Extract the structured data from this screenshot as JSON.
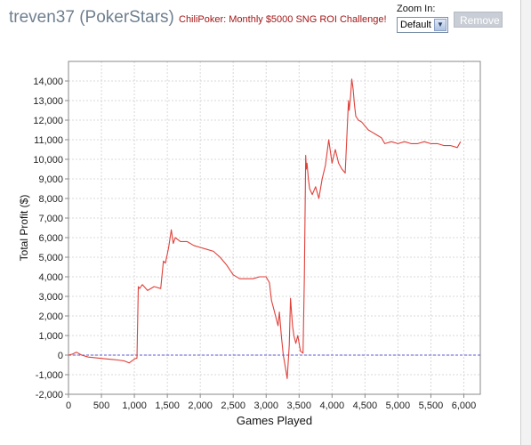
{
  "header": {
    "player_name": "treven37 (PokerStars)",
    "challenge_link": "ChiliPoker: Monthly $5000 SNG ROI Challenge!",
    "zoom_label": "Zoom In:",
    "zoom_value": "Default",
    "remove_label": "Remove"
  },
  "colors": {
    "line": "#e0403a",
    "zero_line": "#5a5ad8",
    "grid": "#d8d8d8",
    "axis": "#888888"
  },
  "icons": {
    "zoom_dropdown": "chevron-down-icon"
  },
  "chart_data": {
    "type": "line",
    "title": "",
    "xlabel": "Games Played",
    "ylabel": "Total Profit ($)",
    "xlim": [
      0,
      6250
    ],
    "ylim": [
      -2000,
      15000
    ],
    "grid": true,
    "legend": "none",
    "x_ticks": [
      0,
      500,
      1000,
      1500,
      2000,
      2500,
      3000,
      3500,
      4000,
      4500,
      5000,
      5500,
      6000
    ],
    "x_tick_labels": [
      "0",
      "500",
      "1,000",
      "1,500",
      "2,000",
      "2,500",
      "3,000",
      "3,500",
      "4,000",
      "4,500",
      "5,000",
      "5,500",
      "6,000"
    ],
    "y_ticks": [
      -2000,
      -1000,
      0,
      1000,
      2000,
      3000,
      4000,
      5000,
      6000,
      7000,
      8000,
      9000,
      10000,
      11000,
      12000,
      13000,
      14000
    ],
    "y_tick_labels": [
      "-2,000",
      "-1,000",
      "0",
      "1,000",
      "2,000",
      "3,000",
      "4,000",
      "5,000",
      "6,000",
      "7,000",
      "8,000",
      "9,000",
      "10,000",
      "11,000",
      "12,000",
      "13,000",
      "14,000"
    ],
    "reference_line": {
      "y": 0,
      "style": "dashed"
    },
    "series": [
      {
        "x": [
          0,
          60,
          120,
          200,
          300,
          450,
          600,
          750,
          850,
          920,
          1000,
          1040,
          1060,
          1080,
          1120,
          1200,
          1300,
          1400,
          1440,
          1470,
          1490,
          1520,
          1560,
          1590,
          1620,
          1700,
          1800,
          1900,
          2000,
          2100,
          2200,
          2300,
          2400,
          2500,
          2600,
          2700,
          2800,
          2900,
          3000,
          3050,
          3080,
          3120,
          3180,
          3200,
          3230,
          3260,
          3300,
          3320,
          3350,
          3370,
          3400,
          3420,
          3450,
          3480,
          3520,
          3560,
          3580,
          3600,
          3610,
          3620,
          3640,
          3660,
          3700,
          3750,
          3800,
          3850,
          3900,
          3950,
          4000,
          4050,
          4100,
          4150,
          4200,
          4250,
          4260,
          4280,
          4300,
          4320,
          4340,
          4360,
          4400,
          4450,
          4500,
          4550,
          4600,
          4650,
          4700,
          4750,
          4800,
          4900,
          5000,
          5100,
          5200,
          5300,
          5400,
          5500,
          5600,
          5700,
          5800,
          5900,
          5950
        ],
        "y": [
          0,
          50,
          150,
          0,
          -100,
          -150,
          -200,
          -250,
          -300,
          -400,
          -200,
          -150,
          3500,
          3400,
          3600,
          3300,
          3500,
          3400,
          4800,
          4700,
          5000,
          5500,
          6400,
          5700,
          6000,
          5800,
          5800,
          5600,
          5500,
          5400,
          5300,
          5000,
          4600,
          4100,
          3900,
          3900,
          3900,
          4000,
          4000,
          3700,
          2800,
          2300,
          1500,
          2200,
          1000,
          0,
          -800,
          -1200,
          500,
          2900,
          1500,
          1000,
          600,
          1000,
          200,
          100,
          4000,
          10200,
          9500,
          9800,
          9000,
          8500,
          8200,
          8600,
          8000,
          9000,
          9700,
          11000,
          9800,
          10500,
          9800,
          9500,
          9300,
          13000,
          12500,
          13200,
          14100,
          13600,
          12800,
          12200,
          12000,
          11900,
          11700,
          11500,
          11400,
          11300,
          11200,
          11100,
          10800,
          10900,
          10800,
          10900,
          10800,
          10800,
          10900,
          10800,
          10800,
          10700,
          10700,
          10600,
          10900
        ]
      }
    ]
  }
}
